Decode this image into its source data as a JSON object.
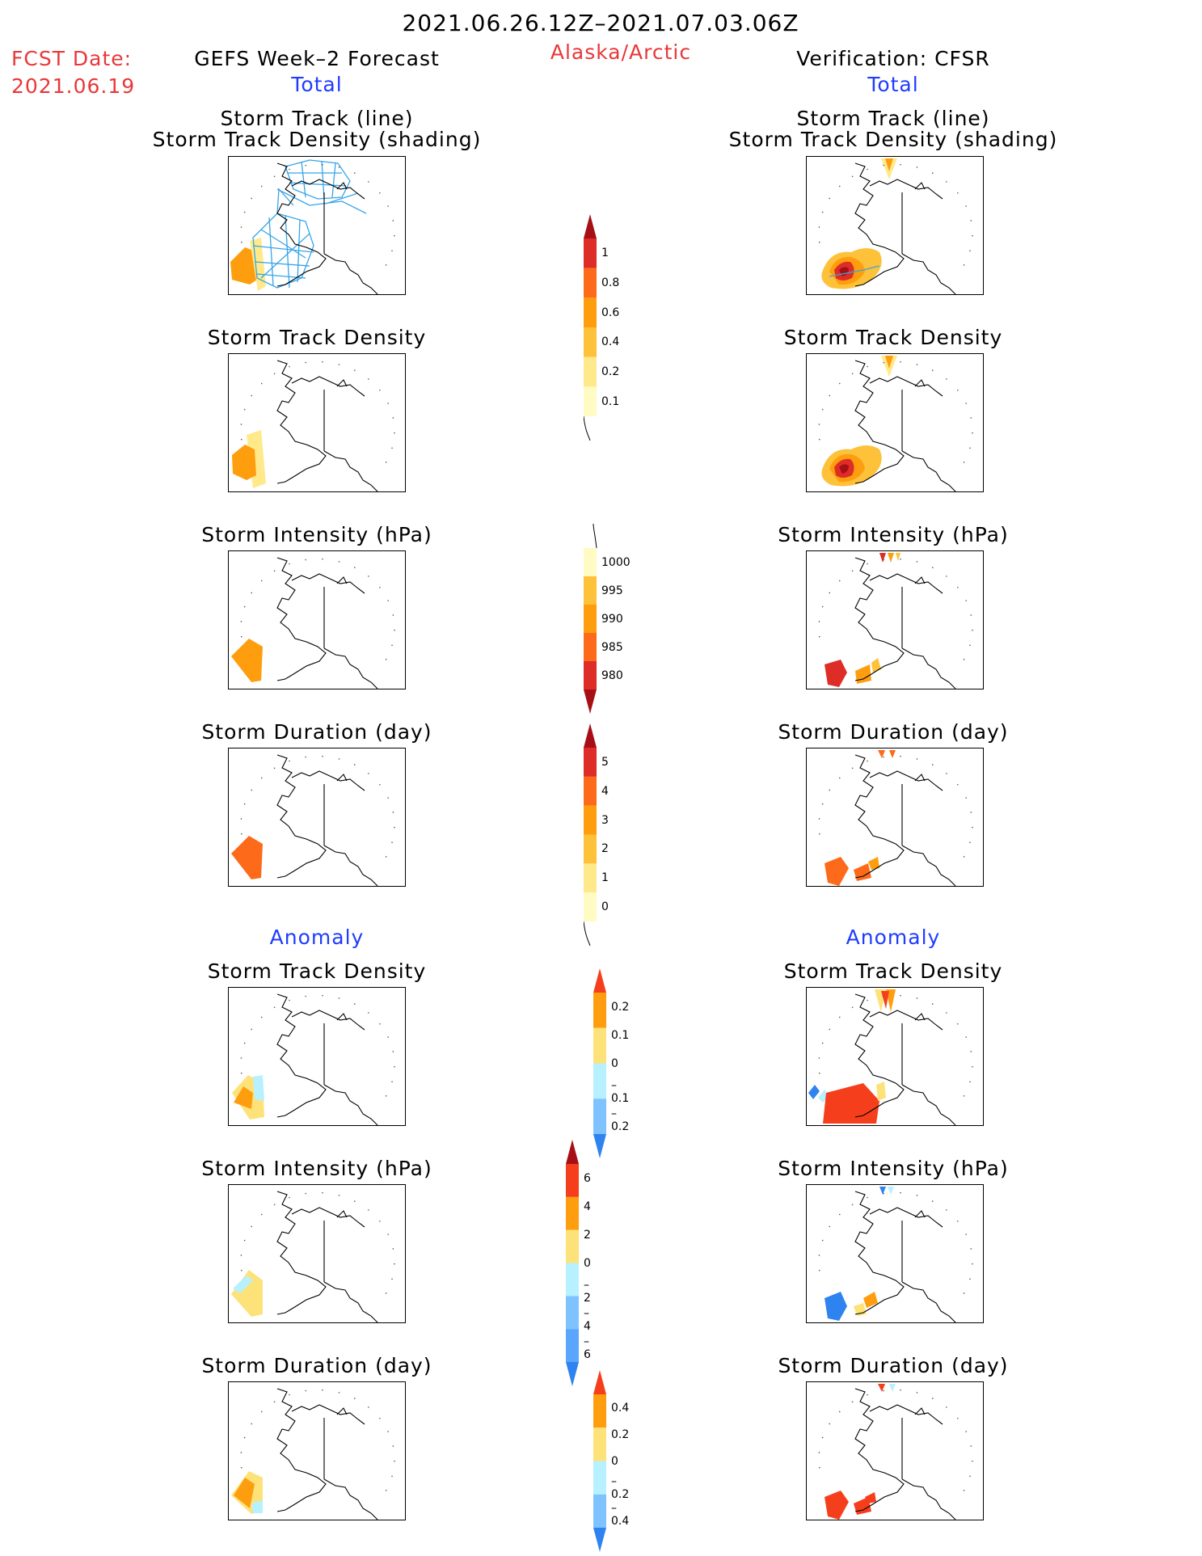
{
  "header": {
    "period": "2021.06.26.12Z–2021.07.03.06Z",
    "fcst_label": "FCST Date:",
    "fcst_date": "2021.06.19",
    "left_title": "GEFS Week–2 Forecast",
    "region": "Alaska/Arctic",
    "right_title": "Verification: CFSR"
  },
  "sections": {
    "total": "Total",
    "anomaly": "Anomaly"
  },
  "panel_titles": {
    "track_line": "Storm Track (line)",
    "track_shading": "Storm Track Density (shading)",
    "density": "Storm Track Density",
    "intensity": "Storm Intensity (hPa)",
    "duration": "Storm Duration (day)"
  },
  "colorbars": {
    "density_total": {
      "labels": [
        "1",
        "0.8",
        "0.6",
        "0.4",
        "0.2",
        "0.1"
      ],
      "colors": [
        "#a50f15",
        "#de2d26",
        "#fc6a1a",
        "#fe9e0e",
        "#fdc13a",
        "#ffe98a",
        "#fffbc2"
      ]
    },
    "intensity_total": {
      "labels": [
        "1000",
        "995",
        "990",
        "985",
        "980"
      ],
      "colors": [
        "#fffbc2",
        "#fdc13a",
        "#fe9e0e",
        "#fc6a1a",
        "#de2d26",
        "#a50f15"
      ]
    },
    "duration_total": {
      "labels": [
        "5",
        "4",
        "3",
        "2",
        "1",
        "0"
      ],
      "colors": [
        "#a50f15",
        "#de2d26",
        "#fc6a1a",
        "#fe9e0e",
        "#fdc13a",
        "#ffe98a",
        "#fffbc2"
      ]
    },
    "density_anom": {
      "labels": [
        "0.2",
        "0.1",
        "0",
        "–0.1",
        "–0.2"
      ],
      "colors": [
        "#f53f1c",
        "#fe9e0e",
        "#fde27a",
        "#b7f0ff",
        "#7ec3ff",
        "#2f83f0"
      ]
    },
    "intensity_anom": {
      "labels": [
        "6",
        "4",
        "2",
        "0",
        "–2",
        "–4",
        "–6"
      ],
      "colors": [
        "#a50f15",
        "#f53f1c",
        "#fe9e0e",
        "#fde27a",
        "#b7f0ff",
        "#7ec3ff",
        "#5aa6ff",
        "#2f83f0"
      ]
    },
    "duration_anom": {
      "labels": [
        "0.4",
        "0.2",
        "0",
        "–0.2",
        "–0.4"
      ],
      "colors": [
        "#f53f1c",
        "#fe9e0e",
        "#fde27a",
        "#b7f0ff",
        "#7ec3ff",
        "#2f83f0"
      ]
    }
  },
  "colors": {
    "title_red": "#e8383a",
    "title_blue": "#1f3cff",
    "track_line": "#36a5e6"
  }
}
